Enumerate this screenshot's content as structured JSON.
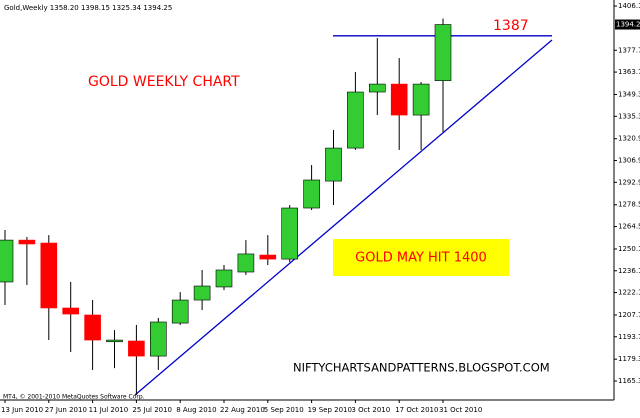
{
  "chart_data": {
    "type": "candlestick",
    "title": "Gold,Weekly  1358.20 1398.15 1325.34 1394.25",
    "annotations": [
      "GOLD WEEKLY CHART",
      "GOLD MAY HIT 1400",
      "NIFTYCHARTSANDPATTERNS.BLOGSPOT.COM"
    ],
    "copyright": "MT4, © 2001-2010 MetaQuotes Software Corp.",
    "resistance": 1387,
    "current_price": 1394.25,
    "categories": [
      "13 Jun 2010",
      null,
      "27 Jun 2010",
      null,
      "11 Jul 2010",
      null,
      "25 Jul 2010",
      null,
      "8 Aug 2010",
      null,
      "22 Aug 2010",
      null,
      "5 Sep 2010",
      null,
      "19 Sep 2010",
      null,
      "3 Oct 2010",
      null,
      "17 Oct 2010",
      null,
      "31 Oct 2010"
    ],
    "open": [
      1228.9,
      1255.8,
      1253.9,
      1212.2,
      1207.7,
      1190.5,
      1191.0,
      1181.3,
      1202.5,
      1217.3,
      1225.7,
      1235.3,
      1246.2,
      1243.6,
      1276.4,
      1293.7,
      1314.9,
      1350.9,
      1356.0,
      1336.1,
      1358.2
    ],
    "high": [
      1262.3,
      1257.8,
      1259.0,
      1228.9,
      1217.3,
      1198.0,
      1201.3,
      1205.8,
      1222.4,
      1236.6,
      1239.8,
      1255.8,
      1259.0,
      1278.3,
      1304.0,
      1326.5,
      1363.8,
      1385.6,
      1372.7,
      1357.3,
      1398.15
    ],
    "low": [
      1214.1,
      1227.0,
      1191.6,
      1183.9,
      1172.4,
      1173.6,
      1156.3,
      1172.4,
      1201.3,
      1210.9,
      1223.7,
      1233.4,
      1239.8,
      1241.7,
      1275.1,
      1278.3,
      1313.7,
      1336.1,
      1313.7,
      1313.7,
      1325.34
    ],
    "close": [
      1255.8,
      1253.3,
      1212.2,
      1208.3,
      1191.6,
      1191.6,
      1181.3,
      1203.2,
      1217.3,
      1226.3,
      1236.6,
      1246.9,
      1243.6,
      1276.4,
      1294.4,
      1314.9,
      1350.9,
      1356.0,
      1336.1,
      1356.0,
      1394.25
    ],
    "up_color": "#33cc33",
    "down_color": "#ff0000",
    "line_color": "#0000cc",
    "ylim": [
      1153.1,
      1410
    ],
    "yticks": [
      1406.1,
      1377.7,
      1363.7,
      1349.3,
      1335.3,
      1320.9,
      1306.9,
      1292.9,
      1278.5,
      1264.5,
      1250.1,
      1236.1,
      1222.1,
      1207.7,
      1193.7,
      1179.3,
      1165.3
    ]
  }
}
